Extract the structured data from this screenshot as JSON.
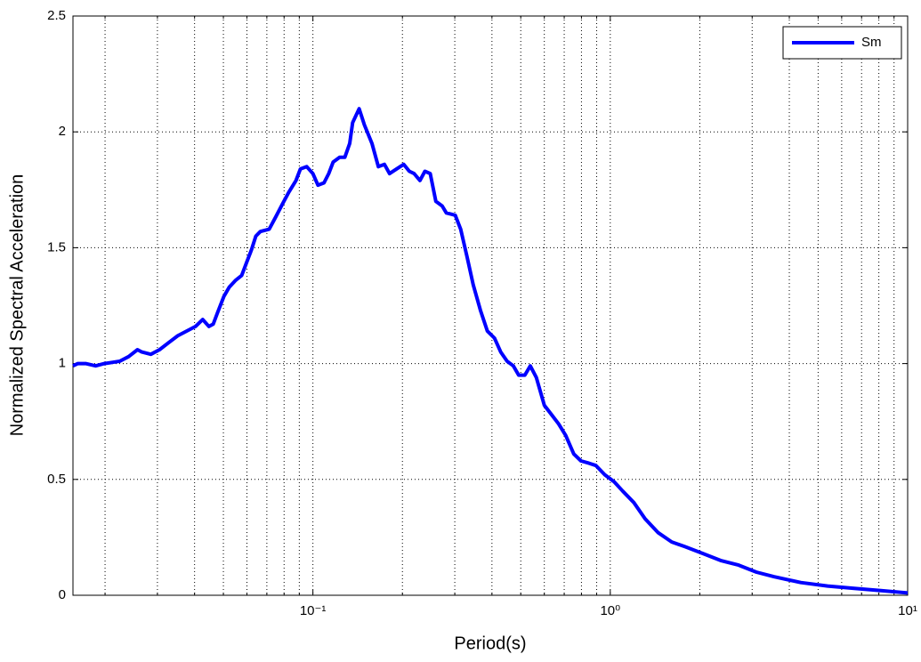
{
  "chart_data": {
    "type": "line",
    "xlabel": "Period(s)",
    "ylabel": "Normalized Spectral Acceleration",
    "xscale": "log",
    "grid": true,
    "legend": "upper right",
    "xlim": [
      0.0156,
      10
    ],
    "ylim": [
      0,
      2.5
    ],
    "xticks": [
      {
        "value": 0.1,
        "label": "10⁻¹"
      },
      {
        "value": 1,
        "label": "10⁰"
      },
      {
        "value": 10,
        "label": "10¹"
      }
    ],
    "xminorticks": [
      0.02,
      0.03,
      0.04,
      0.05,
      0.06,
      0.07,
      0.08,
      0.09,
      0.2,
      0.3,
      0.4,
      0.5,
      0.6,
      0.7,
      0.8,
      0.9,
      2,
      3,
      4,
      5,
      6,
      7,
      8,
      9
    ],
    "yticks": [
      0,
      0.5,
      1,
      1.5,
      2,
      2.5
    ],
    "x": [
      0.0156,
      0.0162,
      0.0172,
      0.0186,
      0.0199,
      0.0224,
      0.024,
      0.0257,
      0.0266,
      0.0285,
      0.0305,
      0.0327,
      0.0351,
      0.0376,
      0.0403,
      0.0426,
      0.0447,
      0.0462,
      0.0478,
      0.0502,
      0.0523,
      0.055,
      0.0576,
      0.06,
      0.0621,
      0.0643,
      0.0666,
      0.0713,
      0.0748,
      0.0791,
      0.083,
      0.0877,
      0.0908,
      0.0953,
      0.1,
      0.104,
      0.109,
      0.113,
      0.117,
      0.123,
      0.128,
      0.133,
      0.136,
      0.143,
      0.149,
      0.158,
      0.166,
      0.174,
      0.181,
      0.191,
      0.202,
      0.211,
      0.219,
      0.229,
      0.238,
      0.248,
      0.259,
      0.272,
      0.281,
      0.301,
      0.314,
      0.33,
      0.346,
      0.366,
      0.386,
      0.408,
      0.428,
      0.45,
      0.472,
      0.492,
      0.516,
      0.538,
      0.564,
      0.6,
      0.634,
      0.67,
      0.708,
      0.754,
      0.797,
      0.848,
      0.895,
      0.959,
      1.03,
      1.1,
      1.2,
      1.31,
      1.45,
      1.61,
      1.78,
      2.05,
      2.35,
      2.7,
      3.1,
      3.56,
      4.37,
      5.38,
      6.61,
      8.13,
      10
    ],
    "series": [
      {
        "name": "Sm",
        "color": "#0000ff",
        "values": [
          0.99,
          1.0,
          1.0,
          0.99,
          1.0,
          1.01,
          1.03,
          1.06,
          1.05,
          1.04,
          1.06,
          1.09,
          1.12,
          1.14,
          1.16,
          1.19,
          1.16,
          1.17,
          1.22,
          1.29,
          1.33,
          1.36,
          1.38,
          1.44,
          1.49,
          1.55,
          1.57,
          1.58,
          1.63,
          1.69,
          1.74,
          1.79,
          1.84,
          1.85,
          1.82,
          1.77,
          1.78,
          1.82,
          1.87,
          1.89,
          1.89,
          1.95,
          2.04,
          2.1,
          2.03,
          1.95,
          1.85,
          1.86,
          1.82,
          1.84,
          1.86,
          1.83,
          1.82,
          1.79,
          1.83,
          1.82,
          1.7,
          1.68,
          1.65,
          1.64,
          1.58,
          1.46,
          1.34,
          1.23,
          1.14,
          1.11,
          1.05,
          1.01,
          0.99,
          0.95,
          0.95,
          0.99,
          0.94,
          0.82,
          0.78,
          0.74,
          0.69,
          0.61,
          0.58,
          0.57,
          0.56,
          0.52,
          0.49,
          0.45,
          0.4,
          0.33,
          0.27,
          0.23,
          0.21,
          0.18,
          0.15,
          0.13,
          0.1,
          0.08,
          0.055,
          0.04,
          0.03,
          0.02,
          0.01
        ]
      }
    ]
  }
}
